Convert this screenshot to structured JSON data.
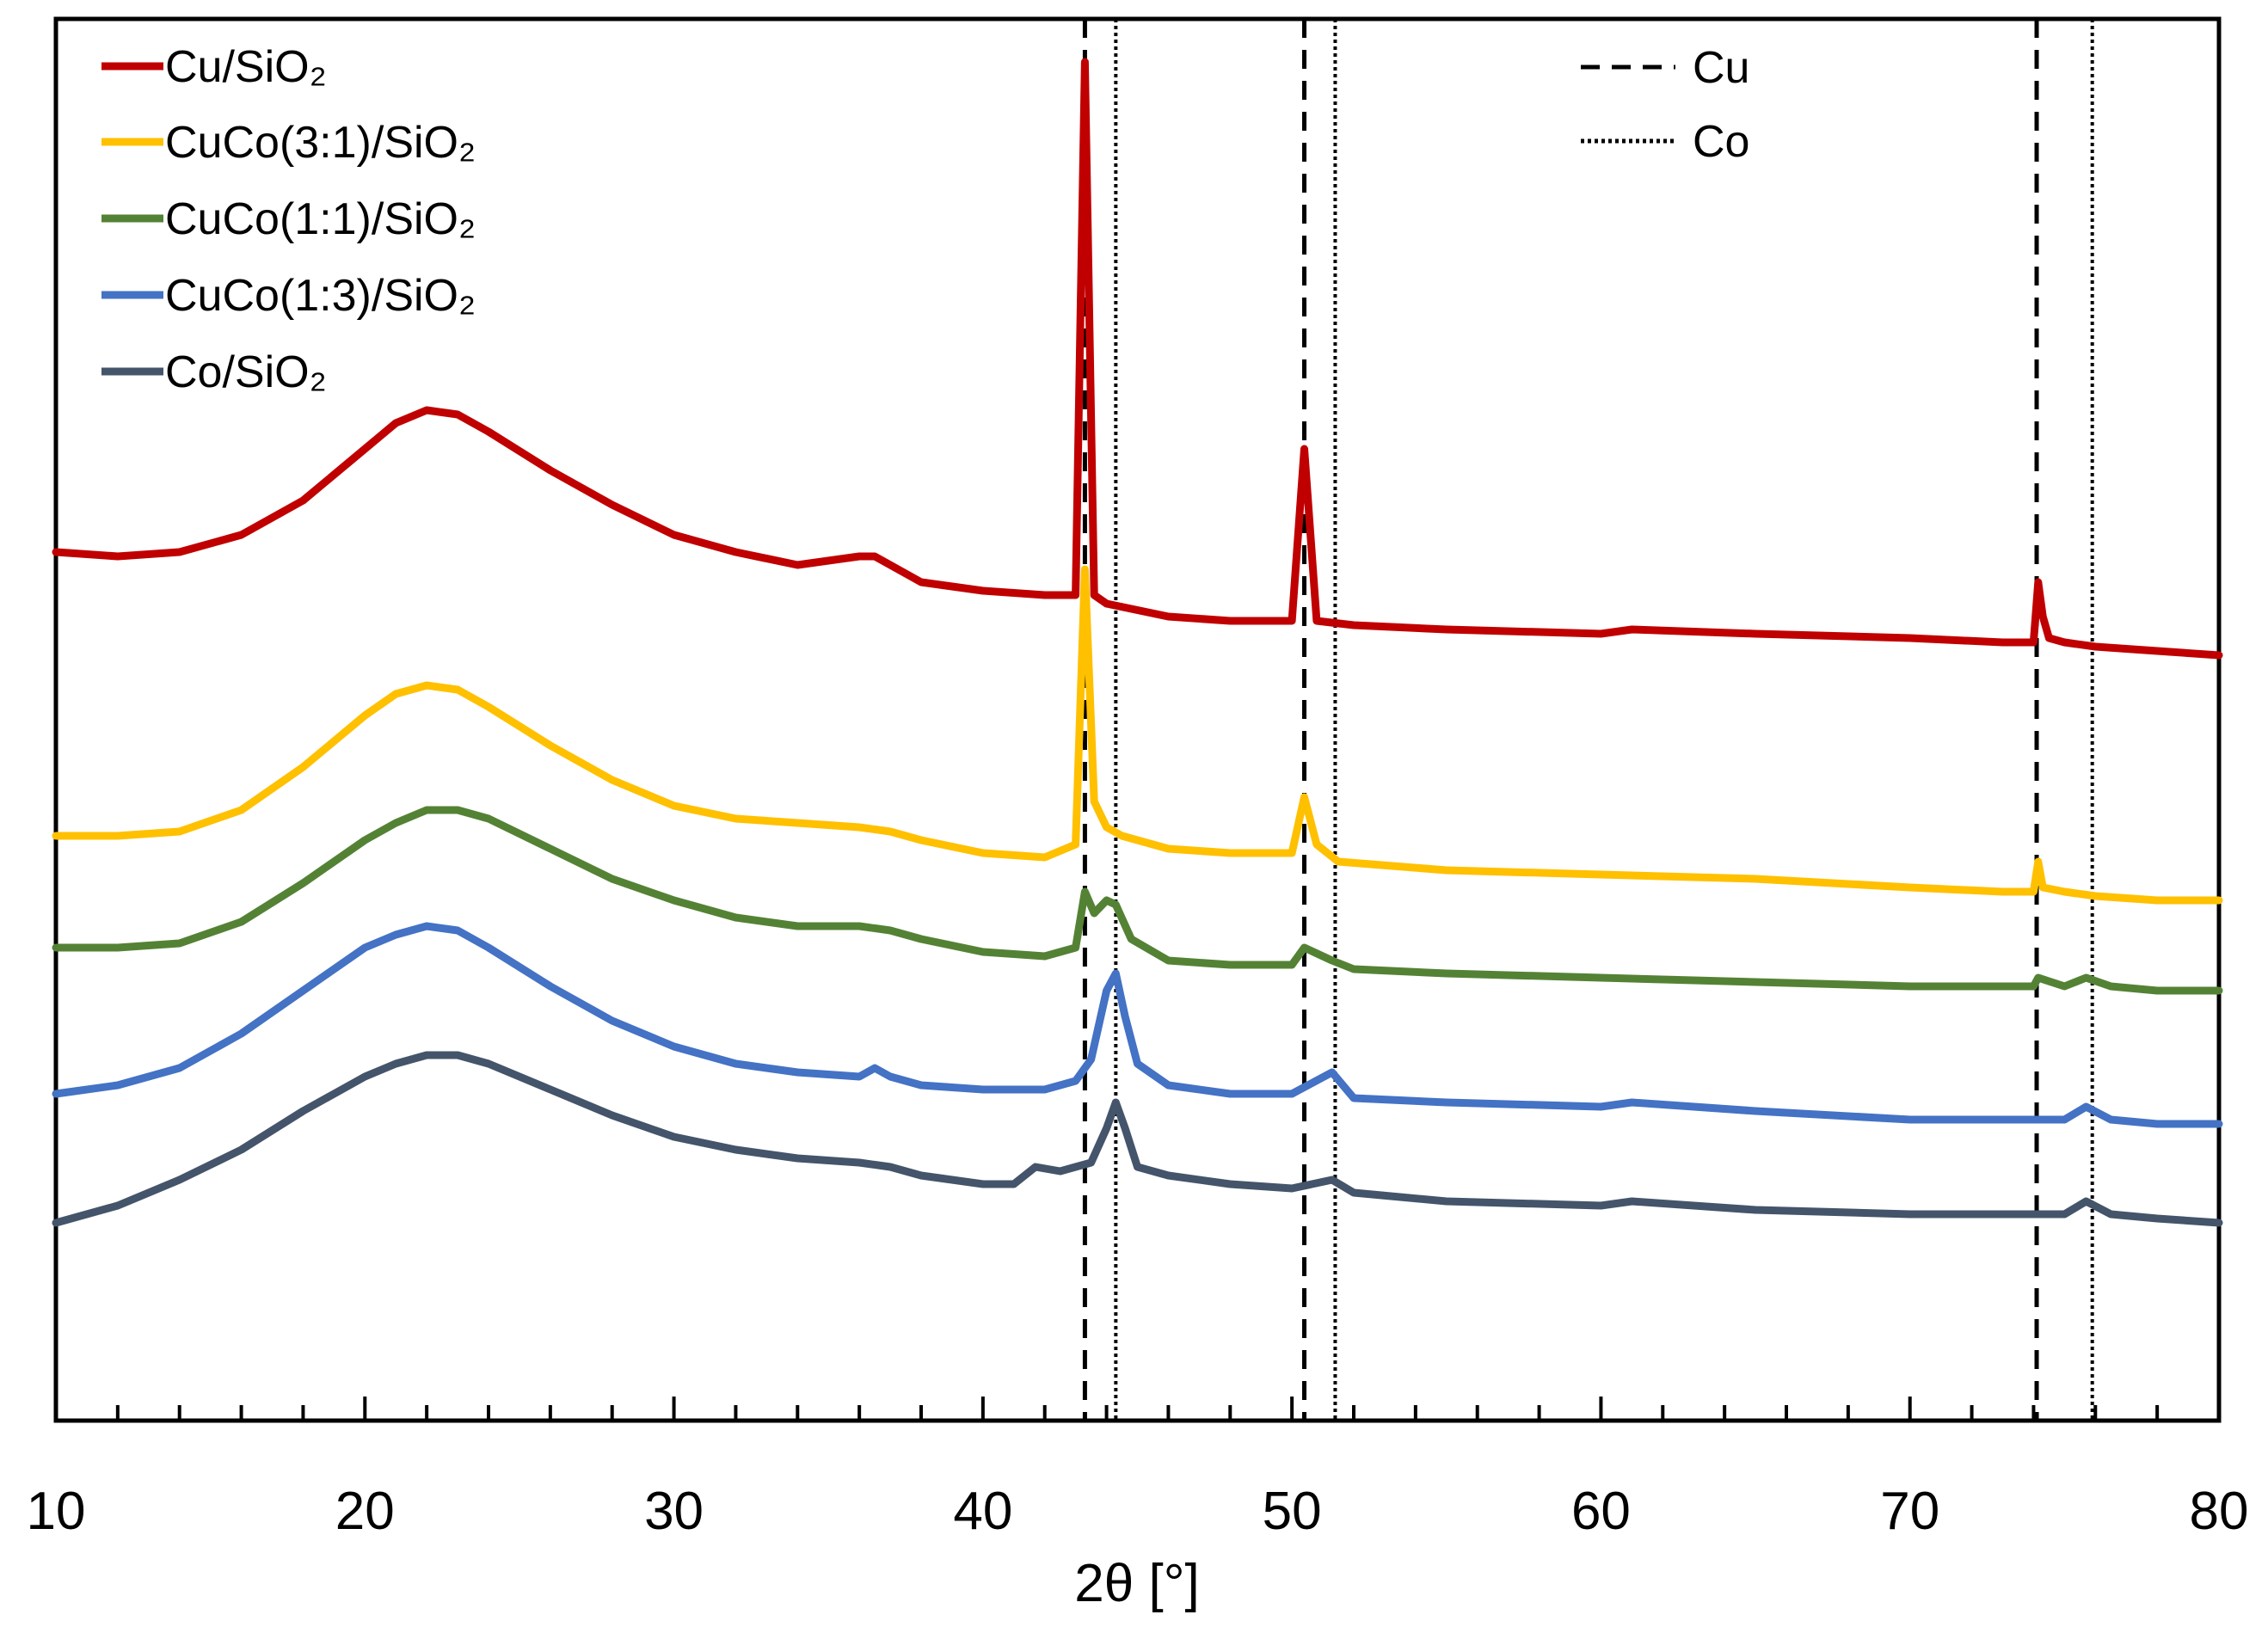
{
  "chart_data": {
    "type": "line",
    "title": "",
    "xlabel": "2θ [°]",
    "ylabel": "",
    "xlim": [
      10,
      80
    ],
    "ylim": [
      -0.3,
      16
    ],
    "x_ticks": [
      "10",
      "20",
      "30",
      "40",
      "50",
      "60",
      "70",
      "80"
    ],
    "y_ticks_shown": false,
    "grid": false,
    "legend_position": "top-left",
    "reference_legend_position": "top-center-right",
    "series": [
      {
        "name": "Cu/SiO₂",
        "color": "#C00000",
        "x": [
          10,
          12,
          14,
          16,
          18,
          20,
          21,
          22,
          23,
          24,
          26,
          28,
          30,
          32,
          34,
          35,
          36,
          36.5,
          37,
          38,
          40,
          42,
          43,
          43.3,
          43.6,
          44,
          46,
          48,
          50,
          50.4,
          50.8,
          52,
          55,
          60,
          61,
          65,
          70,
          73,
          74,
          74.15,
          74.3,
          74.5,
          75,
          76,
          78,
          80
        ],
        "y": [
          9.8,
          9.75,
          9.8,
          10.0,
          10.4,
          11.0,
          11.3,
          11.45,
          11.4,
          11.2,
          10.75,
          10.35,
          10.0,
          9.8,
          9.65,
          9.7,
          9.75,
          9.75,
          9.65,
          9.45,
          9.35,
          9.3,
          9.3,
          15.5,
          9.3,
          9.2,
          9.05,
          9.0,
          9.0,
          11.0,
          9.0,
          8.95,
          8.9,
          8.85,
          8.9,
          8.85,
          8.8,
          8.75,
          8.75,
          9.45,
          9.05,
          8.8,
          8.75,
          8.7,
          8.65,
          8.6
        ]
      },
      {
        "name": "CuCo(3:1)/SiO₂",
        "color": "#FFC000",
        "x": [
          10,
          12,
          14,
          16,
          18,
          20,
          21,
          22,
          23,
          24,
          26,
          28,
          30,
          32,
          34,
          36,
          37,
          38,
          40,
          42,
          43,
          43.3,
          43.6,
          44,
          44.5,
          46,
          48,
          50,
          50.4,
          50.8,
          51.5,
          55,
          60,
          65,
          70,
          73,
          74,
          74.15,
          74.3,
          75,
          76,
          78,
          80
        ],
        "y": [
          6.5,
          6.5,
          6.55,
          6.8,
          7.3,
          7.9,
          8.15,
          8.25,
          8.2,
          8.0,
          7.55,
          7.15,
          6.85,
          6.7,
          6.65,
          6.6,
          6.55,
          6.45,
          6.3,
          6.25,
          6.4,
          9.6,
          6.9,
          6.6,
          6.5,
          6.35,
          6.3,
          6.3,
          6.95,
          6.4,
          6.2,
          6.1,
          6.05,
          6.0,
          5.9,
          5.85,
          5.85,
          6.2,
          5.9,
          5.85,
          5.8,
          5.75,
          5.75
        ]
      },
      {
        "name": "CuCo(1:1)/SiO₂",
        "color": "#548235",
        "x": [
          10,
          12,
          14,
          16,
          18,
          20,
          21,
          22,
          23,
          24,
          26,
          28,
          30,
          32,
          34,
          36,
          37,
          38,
          40,
          42,
          43,
          43.3,
          43.6,
          44,
          44.3,
          44.8,
          46,
          48,
          50,
          50.4,
          51.3,
          52,
          55,
          60,
          65,
          70,
          73,
          74,
          74.15,
          75,
          75.7,
          76.5,
          78,
          80
        ],
        "y": [
          5.2,
          5.2,
          5.25,
          5.5,
          5.95,
          6.45,
          6.65,
          6.8,
          6.8,
          6.7,
          6.35,
          6.0,
          5.75,
          5.55,
          5.45,
          5.45,
          5.4,
          5.3,
          5.15,
          5.1,
          5.2,
          5.85,
          5.6,
          5.75,
          5.7,
          5.3,
          5.05,
          5.0,
          5.0,
          5.2,
          5.05,
          4.95,
          4.9,
          4.85,
          4.8,
          4.75,
          4.75,
          4.75,
          4.85,
          4.75,
          4.85,
          4.75,
          4.7,
          4.7
        ]
      },
      {
        "name": "CuCo(1:3)/SiO₂",
        "color": "#4472C4",
        "x": [
          10,
          12,
          14,
          16,
          18,
          20,
          21,
          22,
          23,
          24,
          26,
          28,
          30,
          32,
          34,
          36,
          36.5,
          37,
          38,
          40,
          42,
          43,
          43.5,
          44,
          44.3,
          44.6,
          45,
          46,
          48,
          50,
          51.3,
          52,
          55,
          60,
          61,
          65,
          70,
          74,
          75,
          75.7,
          76.5,
          78,
          80
        ],
        "y": [
          3.5,
          3.6,
          3.8,
          4.2,
          4.7,
          5.2,
          5.35,
          5.45,
          5.4,
          5.2,
          4.75,
          4.35,
          4.05,
          3.85,
          3.75,
          3.7,
          3.8,
          3.7,
          3.6,
          3.55,
          3.55,
          3.65,
          3.9,
          4.7,
          4.9,
          4.4,
          3.85,
          3.6,
          3.5,
          3.5,
          3.75,
          3.45,
          3.4,
          3.35,
          3.4,
          3.3,
          3.2,
          3.2,
          3.2,
          3.35,
          3.2,
          3.15,
          3.15
        ]
      },
      {
        "name": "Co/SiO₂",
        "color": "#44546A",
        "x": [
          10,
          12,
          14,
          16,
          18,
          20,
          21,
          22,
          23,
          24,
          26,
          28,
          30,
          32,
          34,
          36,
          37,
          38,
          40,
          41,
          41.7,
          42.5,
          43,
          43.5,
          44,
          44.3,
          44.6,
          45,
          46,
          48,
          50,
          51.3,
          52,
          55,
          60,
          61,
          65,
          70,
          74,
          75,
          75.7,
          76.5,
          78,
          80
        ],
        "y": [
          2.0,
          2.2,
          2.5,
          2.85,
          3.3,
          3.7,
          3.85,
          3.95,
          3.95,
          3.85,
          3.55,
          3.25,
          3.0,
          2.85,
          2.75,
          2.7,
          2.65,
          2.55,
          2.45,
          2.45,
          2.65,
          2.6,
          2.65,
          2.7,
          3.1,
          3.4,
          3.1,
          2.65,
          2.55,
          2.45,
          2.4,
          2.5,
          2.35,
          2.25,
          2.2,
          2.25,
          2.15,
          2.1,
          2.1,
          2.1,
          2.25,
          2.1,
          2.05,
          2.0
        ]
      }
    ],
    "reference_lines": [
      {
        "phase": "Cu",
        "style": "dashed",
        "positions": [
          43.3,
          50.4,
          74.1
        ]
      },
      {
        "phase": "Co",
        "style": "dotted",
        "positions": [
          44.3,
          51.4,
          75.9
        ]
      }
    ]
  }
}
